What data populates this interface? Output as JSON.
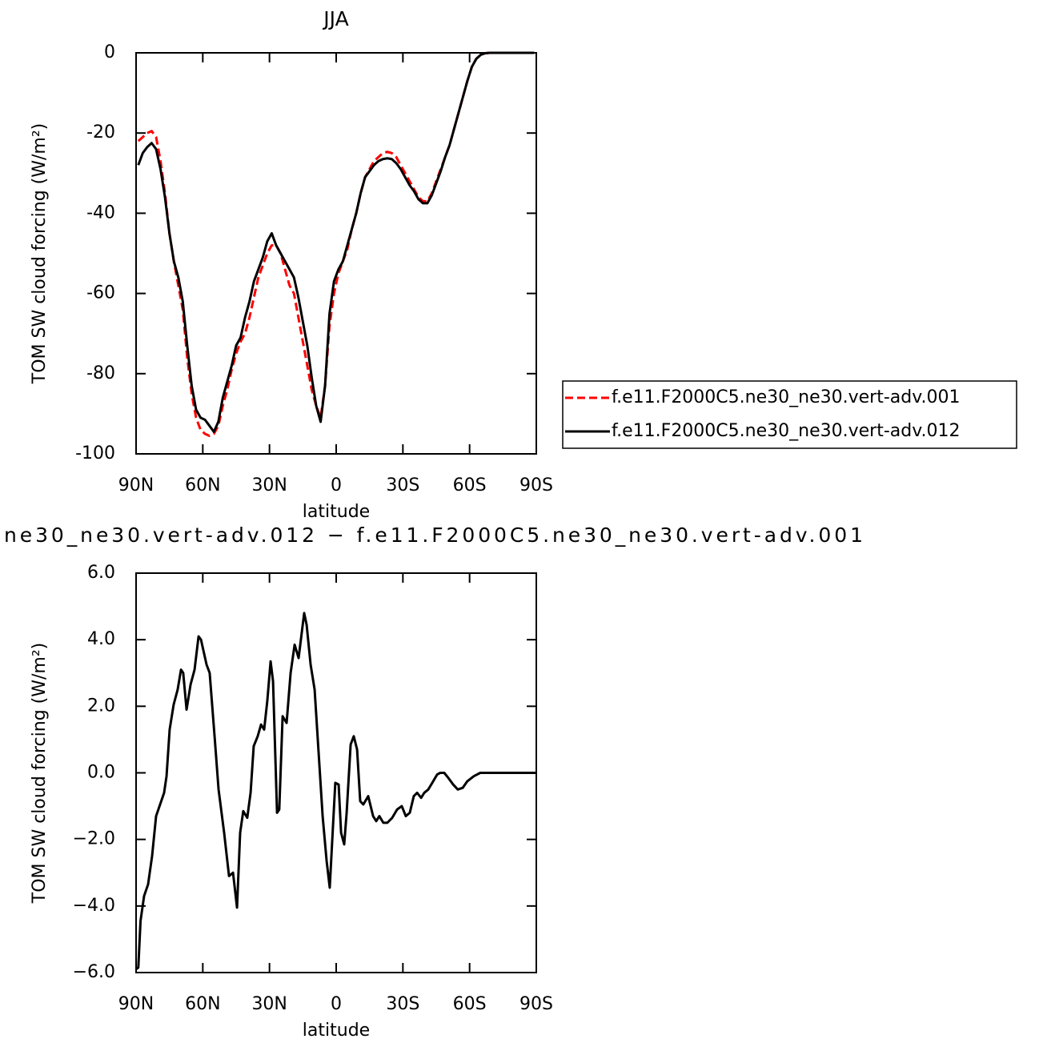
{
  "chart_data": [
    {
      "type": "line",
      "title": "JJA",
      "x_label": "latitude",
      "y_label": "TOM SW cloud forcing (W/m²)",
      "x": [
        89,
        87,
        85,
        83,
        81,
        79,
        77,
        75,
        73,
        71,
        69,
        67,
        65,
        63,
        61,
        59,
        57,
        55,
        53,
        51,
        49,
        47,
        45,
        43,
        41,
        39,
        37,
        35,
        33,
        31,
        29,
        27,
        25,
        23,
        21,
        19,
        17,
        15,
        13,
        11,
        9,
        7,
        5,
        3,
        1,
        -1,
        -3,
        -5,
        -7,
        -9,
        -11,
        -13,
        -15,
        -17,
        -19,
        -21,
        -23,
        -25,
        -27,
        -29,
        -31,
        -33,
        -35,
        -37,
        -39,
        -41,
        -43,
        -45,
        -47,
        -49,
        -51,
        -53,
        -55,
        -57,
        -59,
        -61,
        -63,
        -65,
        -67,
        -69,
        -71,
        -73,
        -75,
        -77,
        -79,
        -81,
        -83,
        -85,
        -87,
        -89
      ],
      "xlim": [
        90,
        -90
      ],
      "xticks": [
        {
          "value": 90,
          "label": "90N"
        },
        {
          "value": 60,
          "label": "60N"
        },
        {
          "value": 30,
          "label": "30N"
        },
        0,
        {
          "value": -30,
          "label": "30S"
        },
        {
          "value": -60,
          "label": "60S"
        },
        {
          "value": -90,
          "label": "90S"
        }
      ],
      "ylim": [
        -100,
        0
      ],
      "yticks": [
        0,
        -20,
        -40,
        -60,
        -80,
        -100
      ],
      "legend": "right",
      "series": [
        {
          "name": "f.e11.F2000C5.ne30_ne30.vert-adv.001",
          "color": "#ff0000",
          "dash": true,
          "values": [
            -22,
            -21,
            -20,
            -19.5,
            -21,
            -27,
            -35,
            -45,
            -52,
            -58,
            -64,
            -76,
            -85,
            -91,
            -94,
            -95,
            -95.5,
            -95,
            -93,
            -88,
            -84,
            -79,
            -75,
            -72,
            -70,
            -66,
            -61,
            -56,
            -53,
            -50,
            -48,
            -48,
            -50,
            -54,
            -58,
            -60,
            -66,
            -72,
            -78,
            -84,
            -88,
            -91,
            -83,
            -68,
            -60,
            -55,
            -52,
            -49,
            -44,
            -40,
            -35,
            -31,
            -29,
            -27,
            -26,
            -25,
            -24.7,
            -25,
            -26,
            -28,
            -30,
            -32,
            -34,
            -36,
            -37,
            -37,
            -35,
            -32,
            -29,
            -26,
            -23,
            -19,
            -15,
            -11,
            -7,
            -3.5,
            -1.5,
            -0.5,
            -0.1,
            0,
            0,
            0,
            0,
            0,
            0,
            0,
            0,
            0,
            0,
            0
          ]
        },
        {
          "name": "f.e11.F2000C5.ne30_ne30.vert-adv.012",
          "color": "#000000",
          "values": [
            -28,
            -25,
            -23.5,
            -22.5,
            -24,
            -29,
            -36,
            -45,
            -52,
            -56,
            -62,
            -73,
            -83,
            -89,
            -91,
            -91.5,
            -93,
            -94.5,
            -92,
            -86,
            -82,
            -78,
            -73,
            -71,
            -66,
            -62,
            -57,
            -54,
            -51,
            -47,
            -45,
            -48,
            -50,
            -52,
            -54,
            -56,
            -61,
            -67,
            -73,
            -81,
            -88,
            -92,
            -83,
            -65,
            -57,
            -54,
            -52,
            -48,
            -44,
            -40,
            -35,
            -31,
            -29.5,
            -28,
            -27,
            -26.5,
            -26.3,
            -26.5,
            -27.5,
            -29,
            -31,
            -33,
            -34.5,
            -36.5,
            -37.5,
            -37.5,
            -35.5,
            -32.5,
            -29.5,
            -26,
            -23,
            -19,
            -15,
            -11,
            -7,
            -3.5,
            -1.5,
            -0.5,
            -0.1,
            0,
            0,
            0,
            0,
            0,
            0,
            0,
            0,
            0,
            0,
            0
          ]
        }
      ]
    },
    {
      "type": "line",
      "title": "ne30_ne30.vert-adv.012 − f.e11.F2000C5.ne30_ne30.vert-adv.001",
      "x_label": "latitude",
      "y_label": "TOM SW cloud forcing (W/m²)",
      "x": [
        90,
        89,
        88,
        86.4,
        84.6,
        82.8,
        81,
        79.2,
        77.4,
        76.3,
        74.9,
        73.1,
        71.3,
        69.8,
        68.8,
        67.3,
        65.5,
        63.7,
        61.9,
        60.8,
        58.3,
        56.9,
        54.7,
        52.9,
        50.4,
        48.2,
        46.4,
        44.6,
        43.2,
        41.8,
        40,
        38.5,
        37.1,
        35.3,
        33.8,
        32.4,
        31,
        29.5,
        28.4,
        26.6,
        25.6,
        24.1,
        22.3,
        20.5,
        18.7,
        16.9,
        14.4,
        13.3,
        11.5,
        9.7,
        7.9,
        6.1,
        4.3,
        2.9,
        1.4,
        0.4,
        -1.1,
        -2.2,
        -3.6,
        -4.7,
        -6.5,
        -7.9,
        -9.4,
        -10.8,
        -12.2,
        -14.4,
        -16.6,
        -18,
        -19.4,
        -21.2,
        -23,
        -25.2,
        -27.4,
        -29.5,
        -31.3,
        -33.1,
        -34.9,
        -36.4,
        -38.2,
        -39.6,
        -41.4,
        -43.2,
        -45.4,
        -46.8,
        -48.6,
        -50.4,
        -52.6,
        -54.7,
        -56.9,
        -59,
        -61.9,
        -64.8,
        -90
      ],
      "xlim": [
        90,
        -90
      ],
      "xticks": [
        {
          "value": 90,
          "label": "90N"
        },
        {
          "value": 60,
          "label": "60N"
        },
        {
          "value": 30,
          "label": "30N"
        },
        0,
        {
          "value": -30,
          "label": "30S"
        },
        {
          "value": -60,
          "label": "60S"
        },
        {
          "value": -90,
          "label": "90S"
        }
      ],
      "ylim": [
        -6,
        6
      ],
      "yticks": [
        {
          "value": 6,
          "label": "6.0"
        },
        {
          "value": 4,
          "label": "4.0"
        },
        {
          "value": 2,
          "label": "2.0"
        },
        {
          "value": 0,
          "label": "0.0"
        },
        {
          "value": -2,
          "label": "−2.0"
        },
        {
          "value": -4,
          "label": "−4.0"
        },
        {
          "value": -6,
          "label": "−6.0"
        }
      ],
      "series": [
        {
          "color": "#000000",
          "values": [
            -5.9,
            -5.85,
            -4.45,
            -3.7,
            -3.35,
            -2.5,
            -1.3,
            -0.95,
            -0.6,
            -0.1,
            1.3,
            2.05,
            2.5,
            3.1,
            3.0,
            1.9,
            2.65,
            3.1,
            4.1,
            4.0,
            3.25,
            3.0,
            1.1,
            -0.5,
            -1.8,
            -3.1,
            -3.0,
            -4.05,
            -1.8,
            -1.15,
            -1.35,
            -0.6,
            0.8,
            1.1,
            1.45,
            1.3,
            2.15,
            3.35,
            2.75,
            -1.2,
            -1.1,
            1.7,
            1.5,
            3.0,
            3.85,
            3.45,
            4.8,
            4.45,
            3.25,
            2.5,
            0.6,
            -1.3,
            -2.65,
            -3.45,
            -1.55,
            -0.3,
            -0.35,
            -1.8,
            -2.15,
            -1.2,
            0.85,
            1.1,
            0.7,
            -0.85,
            -0.95,
            -0.7,
            -1.3,
            -1.45,
            -1.3,
            -1.5,
            -1.5,
            -1.35,
            -1.1,
            -1.0,
            -1.3,
            -1.2,
            -0.7,
            -0.6,
            -0.75,
            -0.6,
            -0.5,
            -0.3,
            -0.05,
            0,
            0,
            -0.15,
            -0.35,
            -0.5,
            -0.45,
            -0.25,
            -0.1,
            0,
            0
          ]
        }
      ]
    }
  ]
}
